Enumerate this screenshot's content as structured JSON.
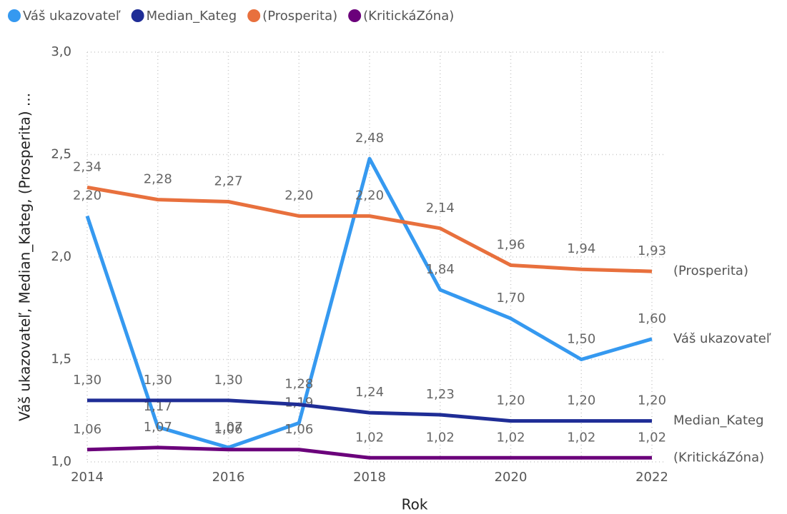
{
  "chart_data": {
    "type": "line",
    "x": [
      2014,
      2015,
      2016,
      2017,
      2018,
      2019,
      2020,
      2021,
      2022
    ],
    "xlim": [
      2014,
      2022
    ],
    "xticks": [
      2014,
      2016,
      2018,
      2020,
      2022
    ],
    "ylim": [
      1.0,
      3.0
    ],
    "yticks": [
      {
        "value": 1.0,
        "label": "1,0"
      },
      {
        "value": 1.5,
        "label": "1,5"
      },
      {
        "value": 2.0,
        "label": "2,0"
      },
      {
        "value": 2.5,
        "label": "2,5"
      },
      {
        "value": 3.0,
        "label": "3,0"
      }
    ],
    "grid": true,
    "legend": "top-left",
    "xlabel": "Rok",
    "ylabel": "Váš ukazovateľ, Median_Kateg, (Prosperita) ...",
    "series": [
      {
        "name": "Váš ukazovateľ",
        "color": "#3599f0",
        "values": [
          2.2,
          1.17,
          1.07,
          1.19,
          2.48,
          1.84,
          1.7,
          1.5,
          1.6
        ],
        "value_labels": [
          "2,20",
          "1,17",
          "1,07",
          "1,19",
          "2,48",
          "1,84",
          "1,70",
          "1,50",
          "1,60"
        ]
      },
      {
        "name": "Median_Kateg",
        "color": "#1f2d96",
        "values": [
          1.3,
          1.3,
          1.3,
          1.28,
          1.24,
          1.23,
          1.2,
          1.2,
          1.2
        ],
        "value_labels": [
          "1,30",
          "1,30",
          "1,30",
          "1,28",
          "1,24",
          "1,23",
          "1,20",
          "1,20",
          "1,20"
        ]
      },
      {
        "name": "(Prosperita)",
        "color": "#e8703d",
        "values": [
          2.34,
          2.28,
          2.27,
          2.2,
          2.2,
          2.14,
          1.96,
          1.94,
          1.93
        ],
        "value_labels": [
          "2,34",
          "2,28",
          "2,27",
          "2,20",
          "2,20",
          "2,14",
          "1,96",
          "1,94",
          "1,93"
        ]
      },
      {
        "name": "(KritickáZóna)",
        "color": "#6b007b",
        "values": [
          1.06,
          1.07,
          1.06,
          1.06,
          1.02,
          1.02,
          1.02,
          1.02,
          1.02
        ],
        "value_labels": [
          "1,06",
          "1,07",
          "1,06",
          "1,06",
          "1,02",
          "1,02",
          "1,02",
          "1,02",
          "1,02"
        ]
      }
    ]
  }
}
